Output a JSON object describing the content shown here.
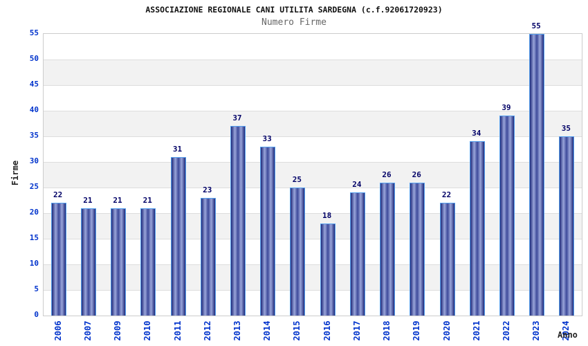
{
  "chart_data": {
    "type": "bar",
    "title": "ASSOCIAZIONE REGIONALE CANI UTILITA SARDEGNA (c.f.92061720923)",
    "subtitle": "Numero Firme",
    "xlabel": "Anno",
    "ylabel": "Firme",
    "categories": [
      "2006",
      "2007",
      "2009",
      "2010",
      "2011",
      "2012",
      "2013",
      "2014",
      "2015",
      "2016",
      "2017",
      "2018",
      "2019",
      "2020",
      "2021",
      "2022",
      "2023",
      "2024"
    ],
    "values": [
      22,
      21,
      21,
      21,
      31,
      23,
      37,
      33,
      25,
      18,
      24,
      26,
      26,
      22,
      34,
      39,
      55,
      35
    ],
    "ylim": [
      0,
      55
    ],
    "ytick_step": 5,
    "grid": true,
    "legend": "none",
    "colors": {
      "title_text": "#111111",
      "subtitle_text": "#666666",
      "axis_label_text": "#222222",
      "tick_label_text": "#0033cc",
      "value_label_text": "#000066",
      "bar_edge_dark": "#1f2a7a",
      "bar_highlight": "#9aa5da",
      "bar_mid": "#3d4a9a",
      "bar_border": "#55a0ee",
      "band_fill": "#f2f2f2",
      "gridline": "#dddddd",
      "plot_border": "#cccccc",
      "background": "#ffffff"
    }
  }
}
